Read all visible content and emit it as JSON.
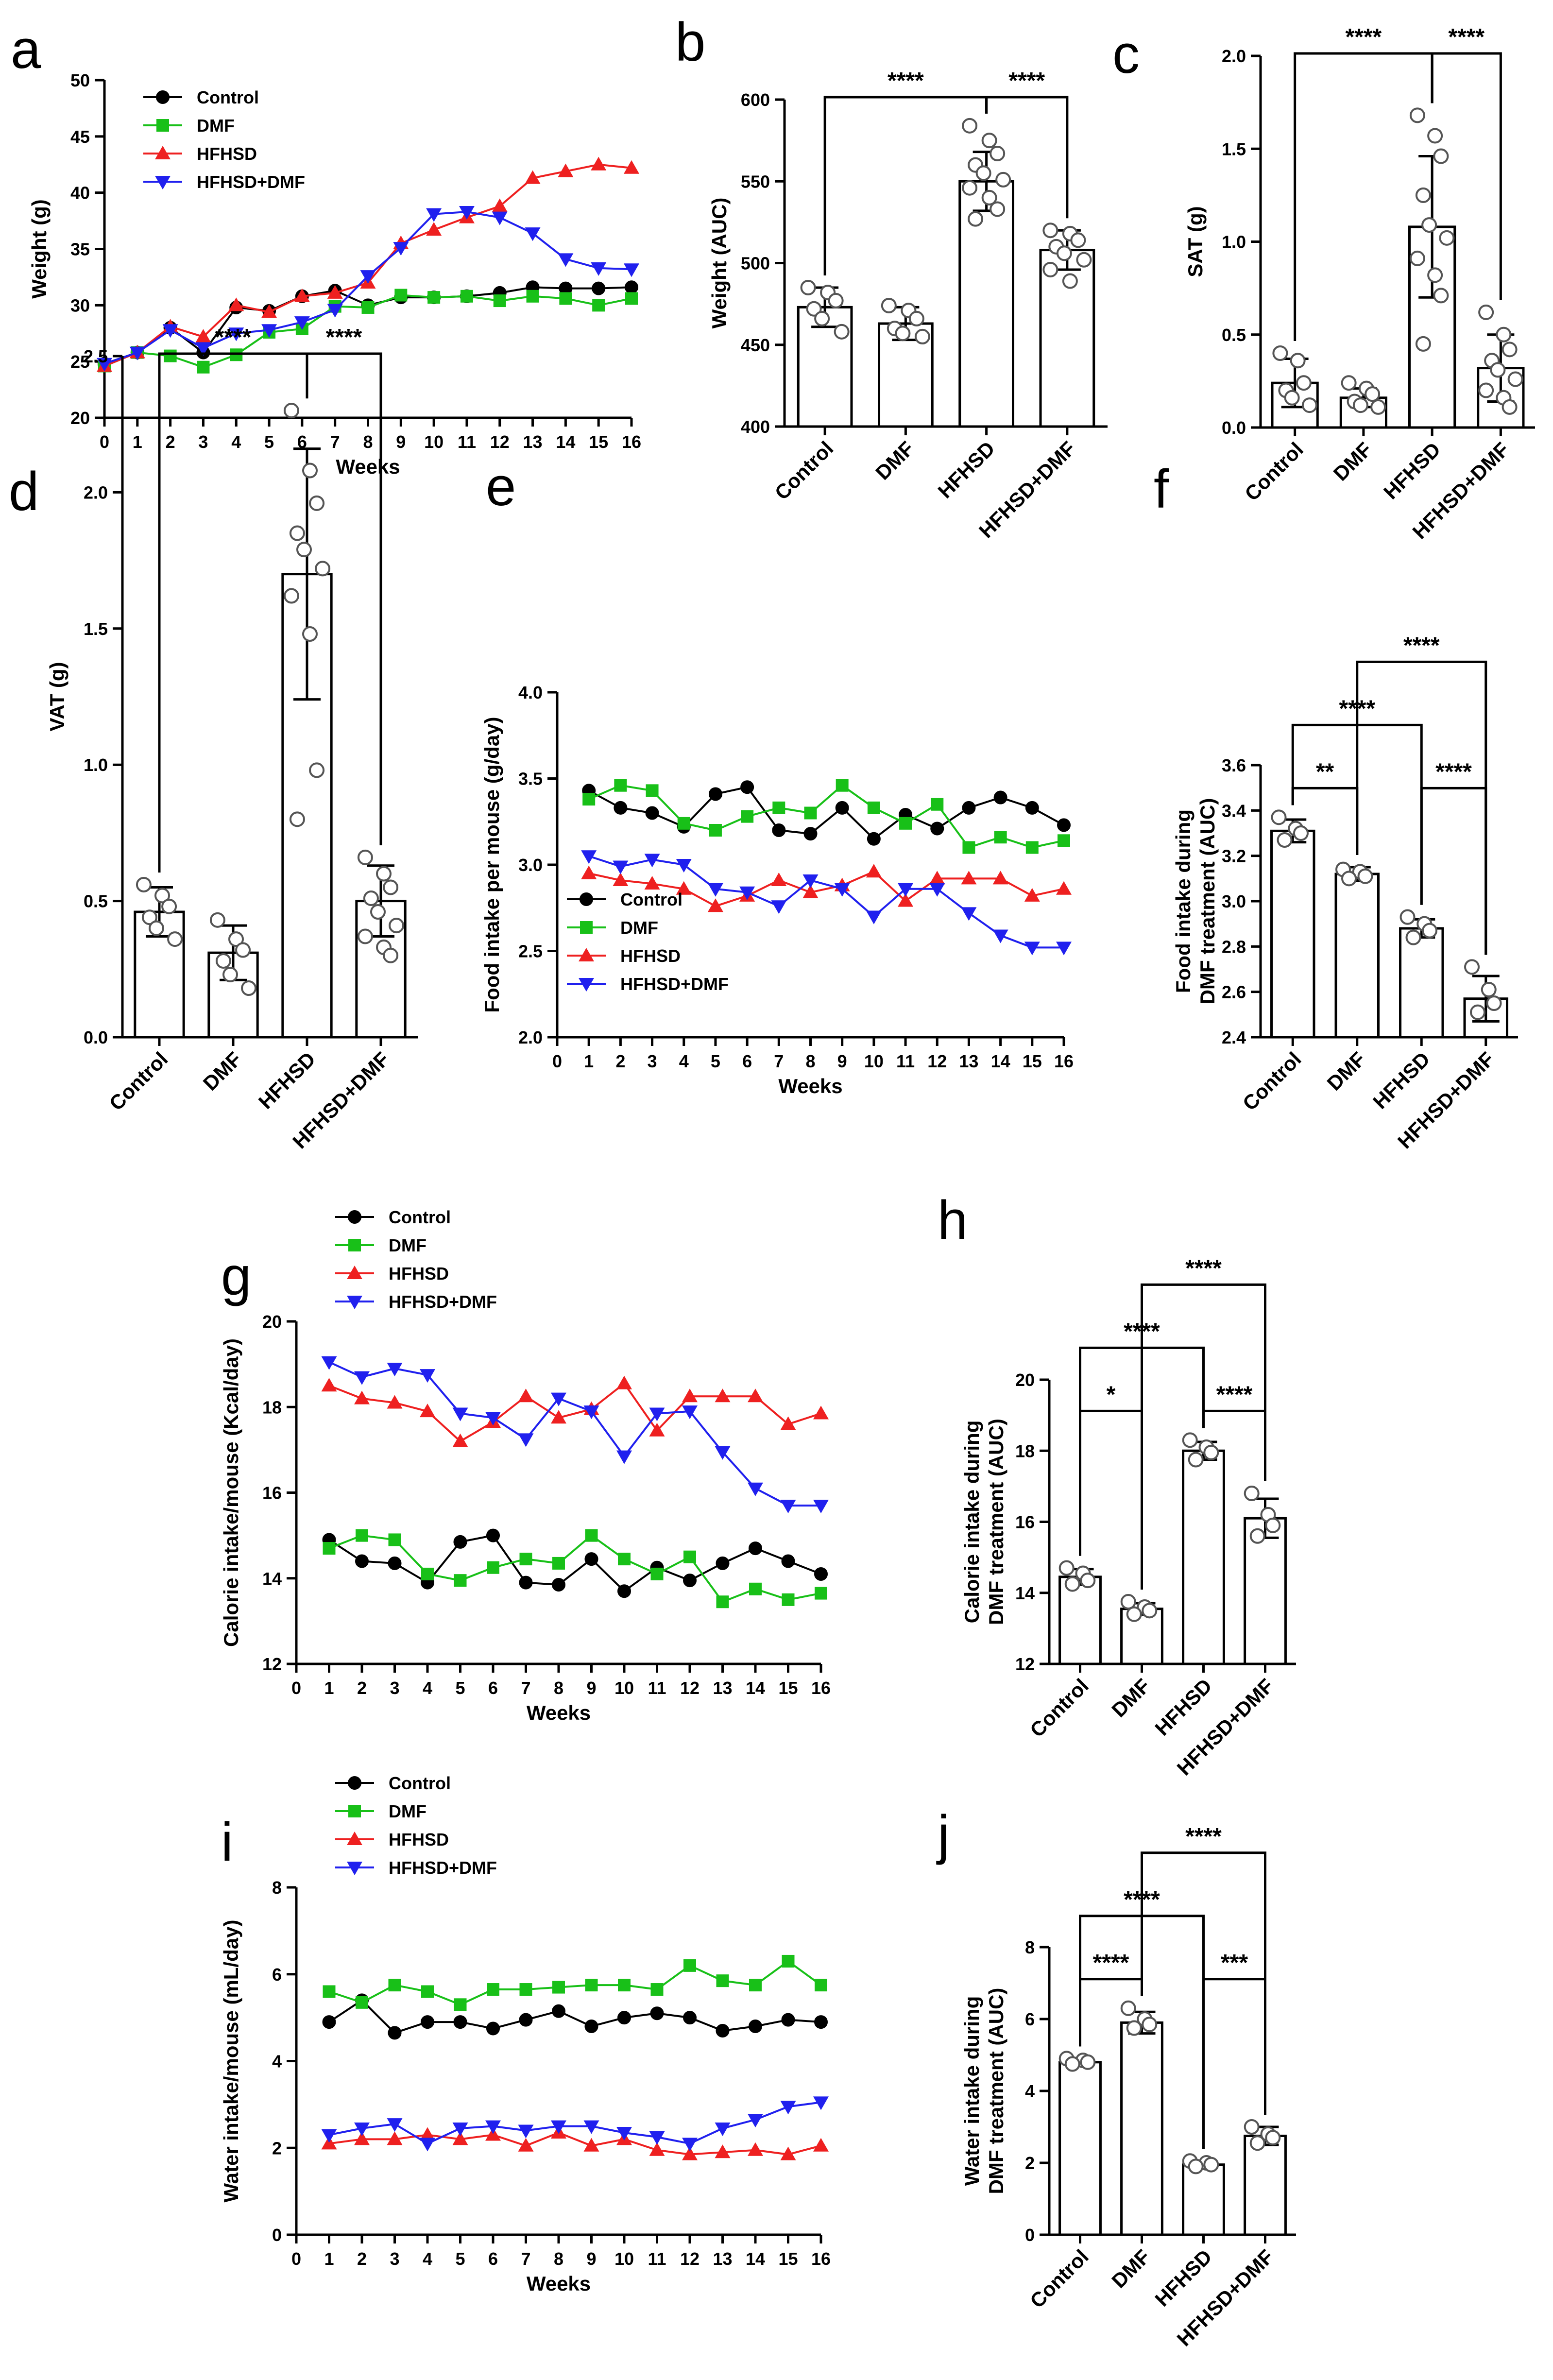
{
  "figure": {
    "colors": {
      "Control": "#000000",
      "DMF": "#18c018",
      "HFHSD": "#ee2020",
      "HFHSD+DMF": "#2020ee"
    }
  },
  "chart_data": [
    {
      "id": "a",
      "panel": "a",
      "type": "line",
      "xlabel": "Weeks",
      "ylabel": "Weight (g)",
      "ylim": [
        20,
        50
      ],
      "yticks": [
        20,
        25,
        30,
        35,
        40,
        45,
        50
      ],
      "x": [
        0,
        1,
        2,
        3,
        4,
        5,
        6,
        7,
        8,
        9,
        10,
        11,
        12,
        13,
        14,
        15,
        16
      ],
      "legend": "top-left",
      "series": [
        {
          "name": "Control",
          "marker": "circle",
          "values": [
            24.8,
            25.8,
            28.0,
            25.8,
            29.8,
            29.5,
            30.8,
            31.3,
            30.0,
            30.7,
            30.7,
            30.8,
            31.1,
            31.6,
            31.5,
            31.5,
            31.6
          ]
        },
        {
          "name": "DMF",
          "marker": "square",
          "values": [
            24.6,
            25.8,
            25.5,
            24.5,
            25.6,
            27.6,
            27.9,
            29.9,
            29.8,
            30.9,
            30.7,
            30.8,
            30.4,
            30.8,
            30.6,
            30.0,
            30.6
          ]
        },
        {
          "name": "HFHSD",
          "marker": "triangle-up",
          "values": [
            24.6,
            25.8,
            28.1,
            27.2,
            30.0,
            29.4,
            30.8,
            31.1,
            32.0,
            35.5,
            36.7,
            37.8,
            38.8,
            41.3,
            41.9,
            42.5,
            42.2
          ]
        },
        {
          "name": "HFHSD+DMF",
          "marker": "triangle-down",
          "values": [
            24.8,
            25.8,
            27.8,
            26.2,
            27.5,
            27.8,
            28.5,
            29.6,
            32.6,
            35.1,
            38.1,
            38.3,
            37.8,
            36.4,
            34.1,
            33.3,
            33.2
          ]
        }
      ]
    },
    {
      "id": "b",
      "panel": "b",
      "type": "bar",
      "ylabel": "Weight (AUC)",
      "ylim": [
        400,
        600
      ],
      "yticks": [
        400,
        450,
        500,
        550,
        600
      ],
      "categories": [
        "Control",
        "DMF",
        "HFHSD",
        "HFHSD+DMF"
      ],
      "values": [
        473,
        463,
        550,
        508
      ],
      "errors": [
        12,
        10,
        18,
        12
      ],
      "points": [
        [
          485,
          482,
          477,
          472,
          466,
          458
        ],
        [
          474,
          471,
          466,
          460,
          457,
          455
        ],
        [
          584,
          575,
          567,
          560,
          555,
          551,
          546,
          540,
          533,
          527
        ],
        [
          520,
          518,
          514,
          510,
          506,
          502,
          496,
          489
        ]
      ],
      "significance": [
        {
          "from": 0,
          "to": 2,
          "label": "****"
        },
        {
          "from": 2,
          "to": 3,
          "label": "****"
        }
      ]
    },
    {
      "id": "c",
      "panel": "c",
      "type": "bar",
      "ylabel": "SAT (g)",
      "ylim": [
        0,
        2.0
      ],
      "yticks": [
        0.0,
        0.5,
        1.0,
        1.5,
        2.0
      ],
      "categories": [
        "Control",
        "DMF",
        "HFHSD",
        "HFHSD+DMF"
      ],
      "values": [
        0.24,
        0.16,
        1.08,
        0.32
      ],
      "errors": [
        0.13,
        0.05,
        0.38,
        0.18
      ],
      "points": [
        [
          0.4,
          0.36,
          0.24,
          0.2,
          0.16,
          0.12
        ],
        [
          0.24,
          0.21,
          0.18,
          0.14,
          0.12,
          0.11
        ],
        [
          1.68,
          1.57,
          1.46,
          1.25,
          1.09,
          1.02,
          0.91,
          0.82,
          0.71,
          0.45
        ],
        [
          0.62,
          0.5,
          0.42,
          0.36,
          0.31,
          0.26,
          0.2,
          0.16,
          0.11
        ]
      ],
      "significance": [
        {
          "from": 0,
          "to": 2,
          "label": "****"
        },
        {
          "from": 2,
          "to": 3,
          "label": "****"
        }
      ]
    },
    {
      "id": "d",
      "panel": "d",
      "type": "bar",
      "ylabel": "VAT (g)",
      "ylim": [
        0,
        2.5
      ],
      "yticks": [
        0.0,
        0.5,
        1.0,
        1.5,
        2.0,
        2.5
      ],
      "categories": [
        "Control",
        "DMF",
        "HFHSD",
        "HFHSD+DMF"
      ],
      "values": [
        0.46,
        0.31,
        1.7,
        0.5
      ],
      "errors": [
        0.09,
        0.1,
        0.46,
        0.13
      ],
      "points": [
        [
          0.56,
          0.52,
          0.48,
          0.44,
          0.4,
          0.36
        ],
        [
          0.43,
          0.36,
          0.32,
          0.28,
          0.23,
          0.18
        ],
        [
          2.3,
          2.08,
          1.96,
          1.85,
          1.79,
          1.72,
          1.62,
          1.48,
          0.98,
          0.8
        ],
        [
          0.66,
          0.6,
          0.55,
          0.51,
          0.46,
          0.41,
          0.37,
          0.33,
          0.3
        ]
      ],
      "significance": [
        {
          "from": 0,
          "to": 2,
          "label": "****"
        },
        {
          "from": 2,
          "to": 3,
          "label": "****"
        }
      ]
    },
    {
      "id": "e",
      "panel": "e",
      "type": "line",
      "xlabel": "Weeks",
      "ylabel": "Food intake per mouse (g/day)",
      "ylim": [
        2.0,
        4.0
      ],
      "yticks": [
        2.0,
        2.5,
        3.0,
        3.5,
        4.0
      ],
      "x": [
        1,
        2,
        3,
        4,
        5,
        6,
        7,
        8,
        9,
        10,
        11,
        12,
        13,
        14,
        15,
        16
      ],
      "legend": "lower-left",
      "series": [
        {
          "name": "Control",
          "marker": "circle",
          "values": [
            3.43,
            3.33,
            3.3,
            3.22,
            3.41,
            3.45,
            3.2,
            3.18,
            3.33,
            3.15,
            3.29,
            3.21,
            3.33,
            3.39,
            3.33,
            3.23
          ]
        },
        {
          "name": "DMF",
          "marker": "square",
          "values": [
            3.38,
            3.46,
            3.43,
            3.24,
            3.2,
            3.28,
            3.33,
            3.3,
            3.46,
            3.33,
            3.24,
            3.35,
            3.1,
            3.16,
            3.1,
            3.14
          ]
        },
        {
          "name": "HFHSD",
          "marker": "triangle-up",
          "values": [
            2.95,
            2.91,
            2.89,
            2.86,
            2.76,
            2.82,
            2.91,
            2.84,
            2.88,
            2.96,
            2.79,
            2.92,
            2.92,
            2.92,
            2.82,
            2.86
          ]
        },
        {
          "name": "HFHSD+DMF",
          "marker": "triangle-down",
          "values": [
            3.05,
            2.99,
            3.03,
            3.0,
            2.86,
            2.84,
            2.76,
            2.91,
            2.86,
            2.7,
            2.86,
            2.86,
            2.72,
            2.59,
            2.52,
            2.52
          ]
        }
      ]
    },
    {
      "id": "f",
      "panel": "f",
      "type": "bar",
      "ylabel": "Food intake during DMF treatment (AUC)",
      "ylim": [
        2.4,
        3.6
      ],
      "yticks": [
        2.4,
        2.6,
        2.8,
        3.0,
        3.2,
        3.4,
        3.6
      ],
      "categories": [
        "Control",
        "DMF",
        "HFHSD",
        "HFHSD+DMF"
      ],
      "values": [
        3.31,
        3.12,
        2.88,
        2.57
      ],
      "errors": [
        0.05,
        0.03,
        0.04,
        0.1
      ],
      "points": [
        [
          3.37,
          3.32,
          3.3,
          3.27
        ],
        [
          3.14,
          3.13,
          3.11,
          3.1
        ],
        [
          2.93,
          2.9,
          2.87,
          2.84
        ],
        [
          2.71,
          2.61,
          2.55,
          2.51
        ]
      ],
      "significance": [
        {
          "from": 0,
          "to": 1,
          "label": "**"
        },
        {
          "from": 0,
          "to": 2,
          "label": "****"
        },
        {
          "from": 1,
          "to": 3,
          "label": "****"
        },
        {
          "from": 2,
          "to": 3,
          "label": "****"
        }
      ]
    },
    {
      "id": "g",
      "panel": "g",
      "type": "line",
      "xlabel": "Weeks",
      "ylabel": "Calorie intake/mouse (Kcal/day)",
      "ylim": [
        12,
        20
      ],
      "yticks": [
        12,
        14,
        16,
        18,
        20
      ],
      "x": [
        1,
        2,
        3,
        4,
        5,
        6,
        7,
        8,
        9,
        10,
        11,
        12,
        13,
        14,
        15,
        16
      ],
      "legend": "top-left",
      "series": [
        {
          "name": "Control",
          "marker": "circle",
          "values": [
            14.9,
            14.4,
            14.35,
            13.9,
            14.85,
            15.0,
            13.9,
            13.85,
            14.45,
            13.7,
            14.25,
            13.95,
            14.35,
            14.7,
            14.4,
            14.1
          ]
        },
        {
          "name": "DMF",
          "marker": "square",
          "values": [
            14.7,
            15.0,
            14.9,
            14.1,
            13.95,
            14.25,
            14.45,
            14.35,
            15.0,
            14.45,
            14.1,
            14.5,
            13.45,
            13.75,
            13.5,
            13.65
          ]
        },
        {
          "name": "HFHSD",
          "marker": "triangle-up",
          "values": [
            18.5,
            18.2,
            18.1,
            17.9,
            17.2,
            17.65,
            18.25,
            17.75,
            17.95,
            18.55,
            17.45,
            18.25,
            18.25,
            18.25,
            17.6,
            17.85
          ]
        },
        {
          "name": "HFHSD+DMF",
          "marker": "triangle-down",
          "values": [
            19.05,
            18.7,
            18.9,
            18.75,
            17.85,
            17.75,
            17.25,
            18.2,
            17.9,
            16.85,
            17.85,
            17.9,
            16.95,
            16.1,
            15.7,
            15.7
          ]
        }
      ]
    },
    {
      "id": "h",
      "panel": "h",
      "type": "bar",
      "ylabel": "Calorie intake during DMF treatment (AUC)",
      "ylim": [
        12,
        20
      ],
      "yticks": [
        12,
        14,
        16,
        18,
        20
      ],
      "categories": [
        "Control",
        "DMF",
        "HFHSD",
        "HFHSD+DMF"
      ],
      "values": [
        14.45,
        13.55,
        18.0,
        16.1
      ],
      "errors": [
        0.22,
        0.16,
        0.25,
        0.55
      ],
      "points": [
        [
          14.7,
          14.55,
          14.35,
          14.25
        ],
        [
          13.75,
          13.6,
          13.5,
          13.4
        ],
        [
          18.3,
          18.1,
          17.95,
          17.75
        ],
        [
          16.8,
          16.2,
          15.9,
          15.6
        ]
      ],
      "significance": [
        {
          "from": 0,
          "to": 1,
          "label": "*"
        },
        {
          "from": 0,
          "to": 2,
          "label": "****"
        },
        {
          "from": 1,
          "to": 3,
          "label": "****"
        },
        {
          "from": 2,
          "to": 3,
          "label": "****"
        }
      ]
    },
    {
      "id": "i",
      "panel": "i",
      "type": "line",
      "xlabel": "Weeks",
      "ylabel": "Water intake/mouse (mL/day)",
      "ylim": [
        0,
        8
      ],
      "yticks": [
        0,
        2,
        4,
        6,
        8
      ],
      "x": [
        1,
        2,
        3,
        4,
        5,
        6,
        7,
        8,
        9,
        10,
        11,
        12,
        13,
        14,
        15,
        16
      ],
      "legend": "top-left",
      "series": [
        {
          "name": "Control",
          "marker": "circle",
          "values": [
            4.9,
            5.4,
            4.65,
            4.9,
            4.9,
            4.75,
            4.95,
            5.15,
            4.8,
            5.0,
            5.1,
            5.0,
            4.7,
            4.8,
            4.95,
            4.9
          ]
        },
        {
          "name": "DMF",
          "marker": "square",
          "values": [
            5.6,
            5.35,
            5.75,
            5.6,
            5.3,
            5.65,
            5.65,
            5.7,
            5.75,
            5.75,
            5.65,
            6.2,
            5.85,
            5.75,
            6.3,
            5.75
          ]
        },
        {
          "name": "HFHSD",
          "marker": "triangle-up",
          "values": [
            2.1,
            2.2,
            2.2,
            2.3,
            2.2,
            2.3,
            2.05,
            2.35,
            2.05,
            2.2,
            1.95,
            1.85,
            1.9,
            1.95,
            1.85,
            2.05
          ]
        },
        {
          "name": "HFHSD+DMF",
          "marker": "triangle-down",
          "values": [
            2.3,
            2.45,
            2.55,
            2.1,
            2.45,
            2.5,
            2.4,
            2.5,
            2.5,
            2.35,
            2.25,
            2.1,
            2.45,
            2.65,
            2.95,
            3.05
          ]
        }
      ]
    },
    {
      "id": "j",
      "panel": "j",
      "type": "bar",
      "ylabel": "Water intake during DMF treatment (AUC)",
      "ylim": [
        0,
        8
      ],
      "yticks": [
        0,
        2,
        4,
        6,
        8
      ],
      "categories": [
        "Control",
        "DMF",
        "HFHSD",
        "HFHSD+DMF"
      ],
      "values": [
        4.8,
        5.9,
        1.95,
        2.75
      ],
      "errors": [
        0.1,
        0.3,
        0.1,
        0.25
      ],
      "points": [
        [
          4.9,
          4.85,
          4.8,
          4.75
        ],
        [
          6.3,
          6.0,
          5.85,
          5.75
        ],
        [
          2.05,
          2.0,
          1.95,
          1.9
        ],
        [
          3.0,
          2.8,
          2.7,
          2.55
        ]
      ],
      "significance": [
        {
          "from": 0,
          "to": 1,
          "label": "****"
        },
        {
          "from": 0,
          "to": 2,
          "label": "****"
        },
        {
          "from": 1,
          "to": 3,
          "label": "****"
        },
        {
          "from": 2,
          "to": 3,
          "label": "***"
        }
      ]
    }
  ]
}
